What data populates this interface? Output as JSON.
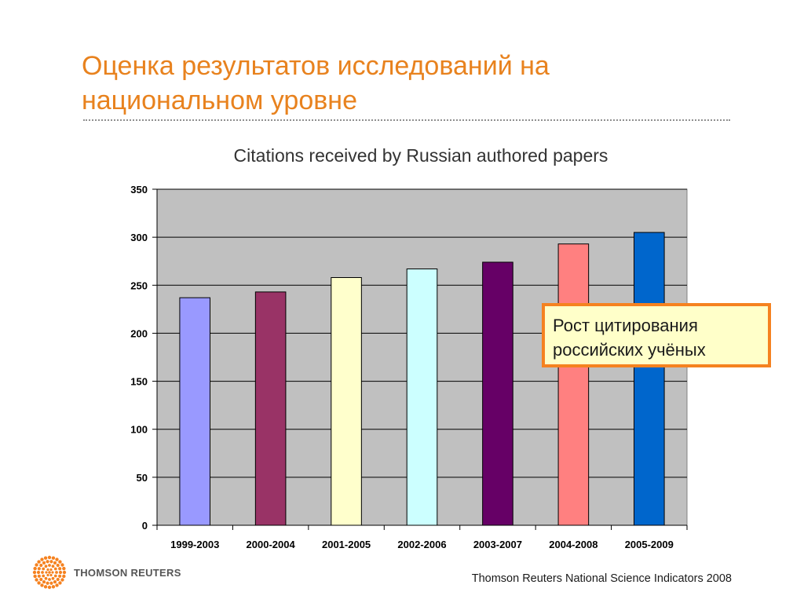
{
  "slide": {
    "title": "Оценка результатов исследований на национальном уровне",
    "source": "Thomson Reuters National Science Indicators 2008"
  },
  "logo": {
    "text": "THOMSON REUTERS",
    "color": "#F58220"
  },
  "callout": {
    "text_line1": "Рост цитирования",
    "text_line2": "российских учёных"
  },
  "chart_data": {
    "type": "bar",
    "title": "Citations received by Russian authored papers",
    "categories": [
      "1999-2003",
      "2000-2004",
      "2001-2005",
      "2002-2006",
      "2003-2007",
      "2004-2008",
      "2005-2009"
    ],
    "values": [
      237,
      243,
      258,
      267,
      274,
      293,
      305
    ],
    "bar_colors": [
      "#9999FF",
      "#993366",
      "#FFFFCC",
      "#CCFFFF",
      "#660066",
      "#FF8080",
      "#0066CC"
    ],
    "xlabel": "",
    "ylabel": "",
    "ylim": [
      0,
      350
    ],
    "yticks": [
      0,
      50,
      100,
      150,
      200,
      250,
      300,
      350
    ],
    "grid": true,
    "plot_background": "#C0C0C0",
    "legend": "none"
  }
}
